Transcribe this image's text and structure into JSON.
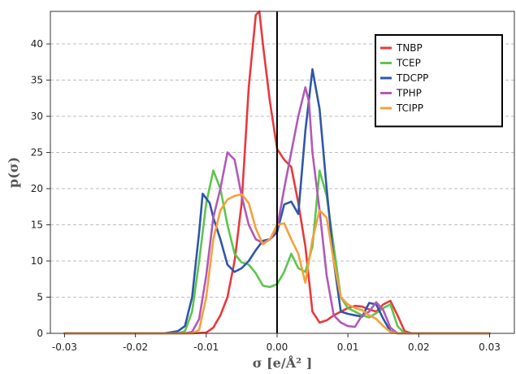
{
  "chart_data": {
    "type": "line",
    "title": "",
    "xlabel": "σ [e/Å² ]",
    "ylabel": "p(σ)",
    "xlim": [
      -0.032,
      0.0335
    ],
    "ylim": [
      0,
      44.5
    ],
    "xticks": [
      -0.03,
      -0.02,
      -0.01,
      0,
      0.01,
      0.02,
      0.03
    ],
    "xtick_labels": [
      "-0.03",
      "-0.02",
      "-0.01",
      "0.00",
      "0.01",
      "0.02",
      "0.03"
    ],
    "yticks": [
      0,
      5,
      10,
      15,
      20,
      25,
      30,
      35,
      40
    ],
    "ytick_labels": [
      "0",
      "5",
      "10",
      "15",
      "20",
      "25",
      "30",
      "35",
      "40"
    ],
    "grid": "horizontal-dashed",
    "zero_line": true,
    "legend_position": "top-right",
    "series": [
      {
        "name": "TNBP",
        "color": "#e8393d",
        "points": [
          [
            -0.03,
            0
          ],
          [
            -0.02,
            0
          ],
          [
            -0.012,
            0
          ],
          [
            -0.01,
            0.1
          ],
          [
            -0.009,
            0.8
          ],
          [
            -0.008,
            2.5
          ],
          [
            -0.007,
            5
          ],
          [
            -0.006,
            10
          ],
          [
            -0.005,
            18
          ],
          [
            -0.004,
            34
          ],
          [
            -0.003,
            44
          ],
          [
            -0.0025,
            44.5
          ],
          [
            -0.002,
            40
          ],
          [
            -0.001,
            32
          ],
          [
            0,
            25.5
          ],
          [
            0.001,
            24
          ],
          [
            0.002,
            23
          ],
          [
            0.003,
            18
          ],
          [
            0.004,
            12
          ],
          [
            0.005,
            3
          ],
          [
            0.006,
            1.5
          ],
          [
            0.007,
            1.8
          ],
          [
            0.008,
            2.5
          ],
          [
            0.009,
            3
          ],
          [
            0.01,
            3.5
          ],
          [
            0.011,
            3.8
          ],
          [
            0.012,
            3.7
          ],
          [
            0.013,
            3.3
          ],
          [
            0.014,
            3
          ],
          [
            0.015,
            4
          ],
          [
            0.016,
            4.5
          ],
          [
            0.017,
            2.5
          ],
          [
            0.018,
            0.3
          ],
          [
            0.019,
            0
          ],
          [
            0.03,
            0
          ]
        ]
      },
      {
        "name": "TCEP",
        "color": "#5ec54e",
        "points": [
          [
            -0.03,
            0
          ],
          [
            -0.02,
            0
          ],
          [
            -0.014,
            0
          ],
          [
            -0.013,
            0.3
          ],
          [
            -0.012,
            3
          ],
          [
            -0.011,
            10
          ],
          [
            -0.01,
            18
          ],
          [
            -0.009,
            22.5
          ],
          [
            -0.008,
            20
          ],
          [
            -0.007,
            15
          ],
          [
            -0.006,
            11
          ],
          [
            -0.005,
            9.8
          ],
          [
            -0.004,
            9.5
          ],
          [
            -0.003,
            8.3
          ],
          [
            -0.002,
            6.6
          ],
          [
            -0.001,
            6.4
          ],
          [
            0,
            6.8
          ],
          [
            0.001,
            8.5
          ],
          [
            0.002,
            11
          ],
          [
            0.003,
            9
          ],
          [
            0.004,
            8.5
          ],
          [
            0.005,
            12
          ],
          [
            0.006,
            22.5
          ],
          [
            0.007,
            19
          ],
          [
            0.008,
            12
          ],
          [
            0.009,
            5
          ],
          [
            0.01,
            3.5
          ],
          [
            0.011,
            3
          ],
          [
            0.012,
            2.5
          ],
          [
            0.013,
            2.2
          ],
          [
            0.014,
            2.8
          ],
          [
            0.015,
            3.5
          ],
          [
            0.016,
            4
          ],
          [
            0.017,
            1
          ],
          [
            0.018,
            0
          ],
          [
            0.03,
            0
          ]
        ]
      },
      {
        "name": "TDCPP",
        "color": "#2f57a8",
        "points": [
          [
            -0.03,
            0
          ],
          [
            -0.02,
            0
          ],
          [
            -0.016,
            0
          ],
          [
            -0.014,
            0.3
          ],
          [
            -0.013,
            1
          ],
          [
            -0.012,
            5
          ],
          [
            -0.011,
            14
          ],
          [
            -0.0105,
            19.3
          ],
          [
            -0.0095,
            18
          ],
          [
            -0.009,
            16
          ],
          [
            -0.008,
            13
          ],
          [
            -0.007,
            9.5
          ],
          [
            -0.006,
            8.5
          ],
          [
            -0.005,
            9
          ],
          [
            -0.004,
            10
          ],
          [
            -0.003,
            11.5
          ],
          [
            -0.002,
            12.8
          ],
          [
            -0.001,
            13
          ],
          [
            0,
            14
          ],
          [
            0.001,
            17.8
          ],
          [
            0.002,
            18.2
          ],
          [
            0.003,
            16.5
          ],
          [
            0.004,
            28
          ],
          [
            0.005,
            36.5
          ],
          [
            0.006,
            31
          ],
          [
            0.007,
            20
          ],
          [
            0.008,
            10
          ],
          [
            0.009,
            3
          ],
          [
            0.01,
            2.7
          ],
          [
            0.011,
            2.5
          ],
          [
            0.012,
            2.3
          ],
          [
            0.013,
            4.2
          ],
          [
            0.014,
            4
          ],
          [
            0.015,
            2
          ],
          [
            0.016,
            0.3
          ],
          [
            0.017,
            0
          ],
          [
            0.03,
            0
          ]
        ]
      },
      {
        "name": "TPHP",
        "color": "#b05ab8",
        "points": [
          [
            -0.03,
            0
          ],
          [
            -0.02,
            0
          ],
          [
            -0.013,
            0
          ],
          [
            -0.012,
            0.2
          ],
          [
            -0.011,
            2
          ],
          [
            -0.01,
            8
          ],
          [
            -0.009,
            16
          ],
          [
            -0.008,
            20
          ],
          [
            -0.007,
            25
          ],
          [
            -0.006,
            24
          ],
          [
            -0.005,
            19
          ],
          [
            -0.004,
            15
          ],
          [
            -0.003,
            13
          ],
          [
            -0.002,
            12.5
          ],
          [
            -0.001,
            13
          ],
          [
            0,
            14.5
          ],
          [
            0.001,
            20
          ],
          [
            0.002,
            25
          ],
          [
            0.003,
            30
          ],
          [
            0.004,
            34
          ],
          [
            0.0045,
            32
          ],
          [
            0.005,
            25
          ],
          [
            0.006,
            17
          ],
          [
            0.007,
            8
          ],
          [
            0.008,
            2.5
          ],
          [
            0.009,
            1.5
          ],
          [
            0.01,
            1
          ],
          [
            0.011,
            0.9
          ],
          [
            0.012,
            2.5
          ],
          [
            0.013,
            3
          ],
          [
            0.014,
            4.3
          ],
          [
            0.015,
            3.2
          ],
          [
            0.016,
            0.8
          ],
          [
            0.017,
            0
          ],
          [
            0.03,
            0
          ]
        ]
      },
      {
        "name": "TCIPP",
        "color": "#f5a03c",
        "points": [
          [
            -0.03,
            0
          ],
          [
            -0.02,
            0
          ],
          [
            -0.012,
            0
          ],
          [
            -0.011,
            0.5
          ],
          [
            -0.01,
            5
          ],
          [
            -0.009,
            13
          ],
          [
            -0.008,
            17
          ],
          [
            -0.007,
            18.5
          ],
          [
            -0.006,
            19
          ],
          [
            -0.005,
            19.2
          ],
          [
            -0.004,
            18
          ],
          [
            -0.003,
            14.5
          ],
          [
            -0.002,
            12.3
          ],
          [
            -0.001,
            13
          ],
          [
            0,
            15
          ],
          [
            0.001,
            15.2
          ],
          [
            0.002,
            13
          ],
          [
            0.003,
            11
          ],
          [
            0.004,
            7
          ],
          [
            0.005,
            13
          ],
          [
            0.006,
            17
          ],
          [
            0.007,
            16
          ],
          [
            0.008,
            10
          ],
          [
            0.009,
            5
          ],
          [
            0.01,
            4
          ],
          [
            0.011,
            3.5
          ],
          [
            0.012,
            3.2
          ],
          [
            0.013,
            2.5
          ],
          [
            0.014,
            2
          ],
          [
            0.015,
            1
          ],
          [
            0.016,
            0.2
          ],
          [
            0.017,
            0
          ],
          [
            0.03,
            0
          ]
        ]
      }
    ]
  }
}
